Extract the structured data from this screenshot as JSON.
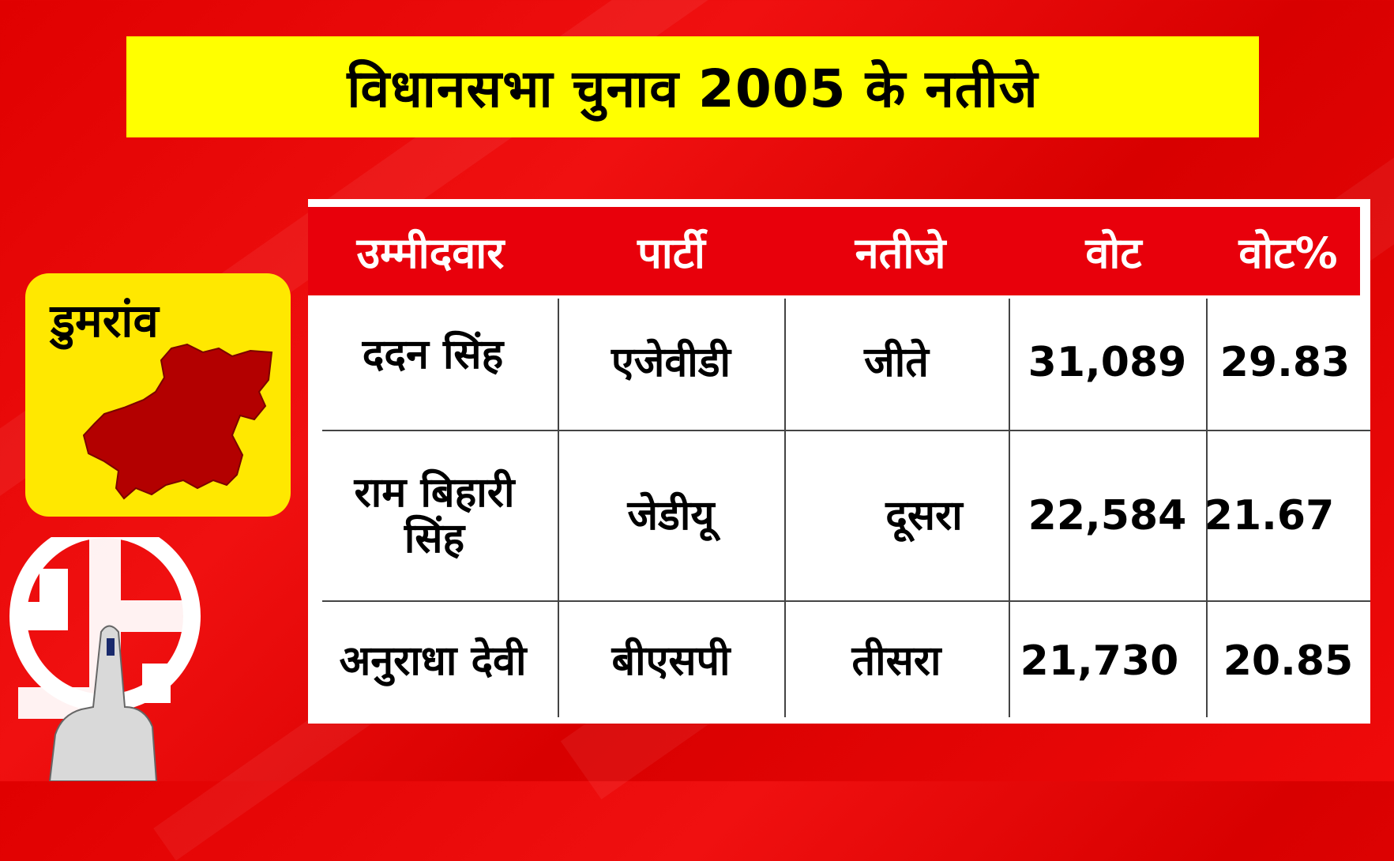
{
  "title": "विधानसभा चुनाव 2005 के नतीजे",
  "constituency": "डुमरांव",
  "table": {
    "headers": [
      "उम्मीदवार",
      "पार्टी",
      "नतीजे",
      "वोट",
      "वोट%"
    ],
    "rows": [
      {
        "candidate": "ददन सिंह",
        "party": "एजेवीडी",
        "result": "जीते",
        "votes": "31,089",
        "vote_pct": "29.83"
      },
      {
        "candidate": "राम बिहारी सिंह",
        "party": "जेडीयू",
        "result": "दूसरा",
        "votes": "22,584",
        "vote_pct": "21.67"
      },
      {
        "candidate": "अनुराधा देवी",
        "party": "बीएसपी",
        "result": "तीसरा",
        "votes": "21,730",
        "vote_pct": "20.85"
      }
    ]
  },
  "colors": {
    "background": "#e00000",
    "title_bg": "#ffff00",
    "header_bg": "#e8000b",
    "badge_bg": "#ffe800",
    "map": "#b30000"
  },
  "icons": [
    "constituency-map-icon",
    "election-commission-symbol-icon",
    "voting-finger-icon"
  ]
}
